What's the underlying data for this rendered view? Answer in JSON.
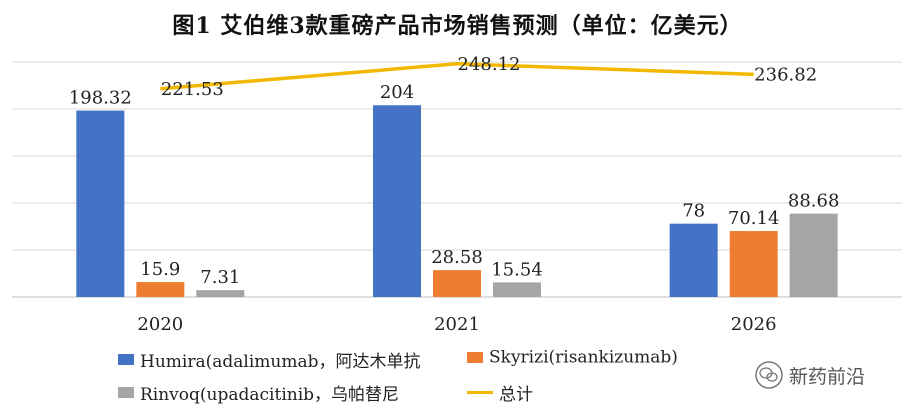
{
  "chart_data": {
    "type": "bar",
    "title": "图1 艾伯维3款重磅产品市场销售预测（单位：亿美元）",
    "categories": [
      "2020",
      "2021",
      "2026"
    ],
    "series": [
      {
        "name": "Humira(adalimumab，阿达木单抗",
        "values": [
          198.32,
          204,
          78
        ],
        "labels": [
          "198.32",
          "204",
          "78"
        ],
        "color": "#4472C4"
      },
      {
        "name": "Skyrizi(risankizumab)",
        "values": [
          15.9,
          28.58,
          70.14
        ],
        "labels": [
          "15.9",
          "28.58",
          "70.14"
        ],
        "color": "#ED7D31"
      },
      {
        "name": "Rinvoq(upadacitinib，乌帕替尼",
        "values": [
          7.31,
          15.54,
          88.68
        ],
        "labels": [
          "7.31",
          "15.54",
          "88.68"
        ],
        "color": "#A5A5A5"
      }
    ],
    "line": {
      "name": "总计",
      "values": [
        221.53,
        248.12,
        236.82
      ],
      "labels": [
        "221.53",
        "248.12",
        "236.82"
      ],
      "color": "#F2B800"
    },
    "ylim": [
      0,
      250
    ],
    "grid": true,
    "legend_position": "bottom"
  },
  "watermark": {
    "text": "新药前沿",
    "icon": "wechat-icon"
  }
}
